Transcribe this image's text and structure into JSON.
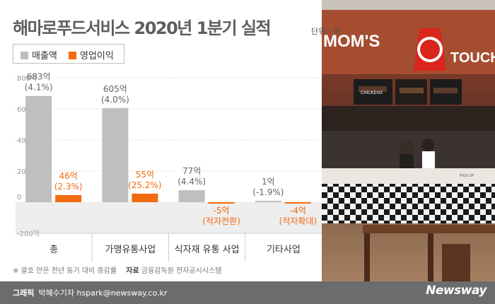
{
  "title": "해마로푸드서비스 2020년 1분기 실적",
  "unit": "단위 : 원",
  "legend": {
    "revenue": "매출액",
    "operating_profit": "영업이익"
  },
  "colors": {
    "revenue": "#bfbfbf",
    "operating_profit": "#f26b0f",
    "negative_band": "#eeeeee",
    "title": "#5e5e5e"
  },
  "chart_data": {
    "type": "bar",
    "categories": [
      "총",
      "가맹유통사업",
      "식자재 유통 사업",
      "기타사업"
    ],
    "series": [
      {
        "name": "매출액",
        "values": [
          683,
          605,
          77,
          1
        ],
        "labels": [
          "683억",
          "605억",
          "77억",
          "1억"
        ],
        "sublabels": [
          "(4.1%)",
          "(4.0%)",
          "(4.4%)",
          "(-1.9%)"
        ]
      },
      {
        "name": "영업이익",
        "values": [
          46,
          55,
          -5,
          -4
        ],
        "labels": [
          "46억",
          "55억",
          "-5억",
          "-4억"
        ],
        "sublabels": [
          "(2.3%)",
          "(25.2%)",
          "(적자전환)",
          "(적자확대)"
        ]
      }
    ],
    "yticks": [
      800,
      600,
      400,
      200,
      0,
      -200
    ],
    "ytick_labels": [
      "800억",
      "600억",
      "400억",
      "200억",
      "0",
      "-200억"
    ],
    "ylim": [
      -200,
      800
    ],
    "grid": true,
    "legend": "top-left"
  },
  "footnote": {
    "note": "※ 괄호 안은 전년 동기 대비 증감률",
    "source_label": "자료",
    "source": "금융감독원 전자공시시스템"
  },
  "credit": {
    "label": "그래픽",
    "author": "박혜수기자 hspark@newsway.co.kr"
  },
  "brand": "Newsway",
  "photo_signage": {
    "logo": "MOM'S",
    "logo2": "TOUCH",
    "menu": "CHICKENS",
    "pickup": "PICK UP"
  }
}
